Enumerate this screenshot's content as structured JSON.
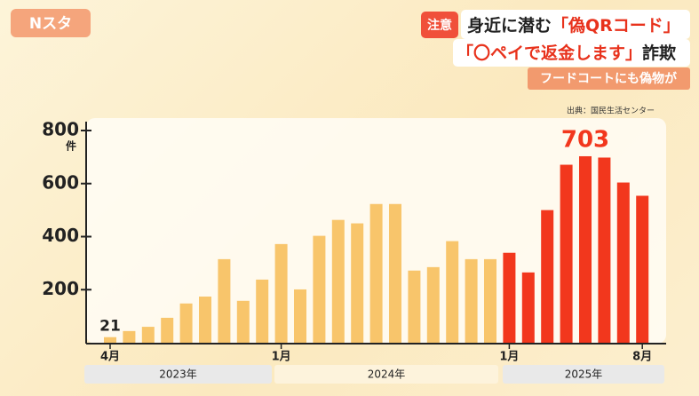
{
  "overlay": {
    "program": "Nスタ",
    "badge": "注意",
    "headline_1a": "身近に潜む",
    "headline_1b": "「偽QRコード」",
    "headline_2a": "「〇ペイで返金します」",
    "headline_2b": "詐欺",
    "subheadline": "フードコートにも偽物が"
  },
  "chart_data": {
    "type": "bar",
    "source": "出典：国民生活センター",
    "y_unit": "件",
    "categories": [
      "4月",
      null,
      null,
      null,
      null,
      null,
      null,
      null,
      null,
      "1月",
      null,
      null,
      null,
      null,
      null,
      null,
      null,
      null,
      null,
      null,
      null,
      "1月",
      null,
      null,
      null,
      null,
      null,
      null,
      "8月"
    ],
    "groups": [
      "2023年",
      "2024年",
      "2025年"
    ],
    "values": [
      21,
      44,
      60,
      94,
      148,
      174,
      315,
      158,
      238,
      372,
      201,
      403,
      463,
      450,
      523,
      523,
      272,
      285,
      383,
      315,
      315,
      339,
      265,
      500,
      671,
      703,
      698,
      604,
      554
    ],
    "value_labels": [
      "21",
      null,
      null,
      null,
      null,
      null,
      null,
      null,
      null,
      null,
      null,
      null,
      null,
      null,
      null,
      null,
      null,
      null,
      null,
      null,
      null,
      null,
      null,
      null,
      null,
      "703",
      null,
      null,
      null
    ],
    "colors": [
      "#f8c56b",
      "#f8c56b",
      "#f8c56b",
      "#f8c56b",
      "#f8c56b",
      "#f8c56b",
      "#f8c56b",
      "#f8c56b",
      "#f8c56b",
      "#f8c56b",
      "#f8c56b",
      "#f8c56b",
      "#f8c56b",
      "#f8c56b",
      "#f8c56b",
      "#f8c56b",
      "#f8c56b",
      "#f8c56b",
      "#f8c56b",
      "#f8c56b",
      "#f8c56b",
      "#f2371d",
      "#f2371d",
      "#f2371d",
      "#f2371d",
      "#f2371d",
      "#f2371d",
      "#f2371d",
      "#f2371d"
    ],
    "ylim": [
      0,
      800
    ],
    "yticks": [
      200,
      400,
      600,
      800
    ],
    "grid": false
  }
}
